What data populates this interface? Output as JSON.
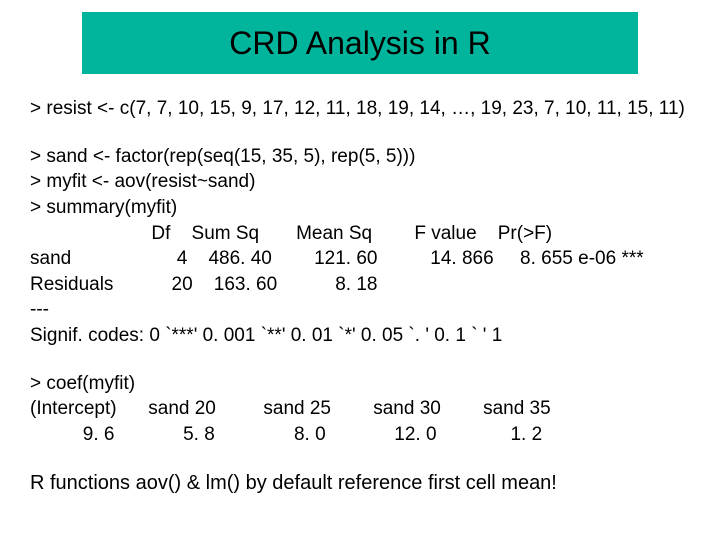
{
  "title": "CRD Analysis in R",
  "title_bar_color": "#00b59c",
  "line_resist": "> resist <- c(7, 7, 10, 15, 9, 17, 12, 11, 18, 19, 14, …, 19, 23, 7, 10, 11, 15, 11)",
  "line_sand": "> sand <- factor(rep(seq(15, 35, 5), rep(5, 5)))",
  "line_myfit": "> myfit <- aov(resist~sand)",
  "line_summary": "> summary(myfit)",
  "anova": {
    "header": "                       Df    Sum Sq       Mean Sq        F value    Pr(>F)",
    "row_sand": "sand                    4    486. 40        121. 60          14. 866     8. 655 e-06 ***",
    "row_resid": "Residuals           20    163. 60           8. 18",
    "sep": "---",
    "signif": "Signif. codes:  0 `***' 0. 001 `**' 0. 01 `*' 0. 05 `. ' 0. 1 ` ' 1"
  },
  "coef": {
    "cmd": "> coef(myfit)",
    "labels": "(Intercept)      sand 20         sand 25        sand 30        sand 35",
    "values": "          9. 6             5. 8               8. 0             12. 0              1. 2"
  },
  "footer": "R functions aov() & lm() by default reference first cell mean!"
}
